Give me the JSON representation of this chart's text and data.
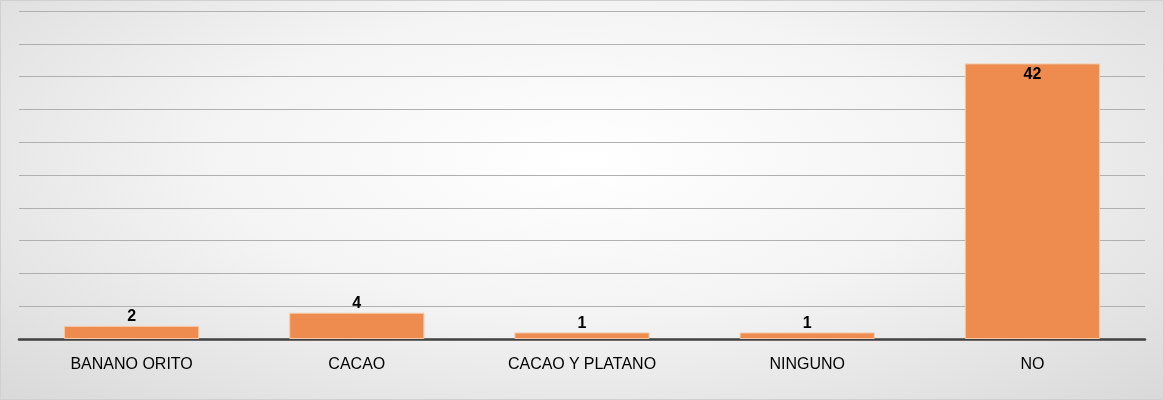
{
  "chart_data": {
    "type": "bar",
    "categories": [
      "BANANO ORITO",
      "CACAO",
      "CACAO Y PLATANO",
      "NINGUNO",
      "NO"
    ],
    "values": [
      2,
      4,
      1,
      1,
      42
    ],
    "color": "#ed8c4e",
    "ylim": [
      0,
      50
    ],
    "yticks": [
      0,
      5,
      10,
      15,
      20,
      25,
      30,
      35,
      40,
      45,
      50
    ],
    "grid": "y",
    "tick_labels": "x",
    "data_labels": true
  }
}
